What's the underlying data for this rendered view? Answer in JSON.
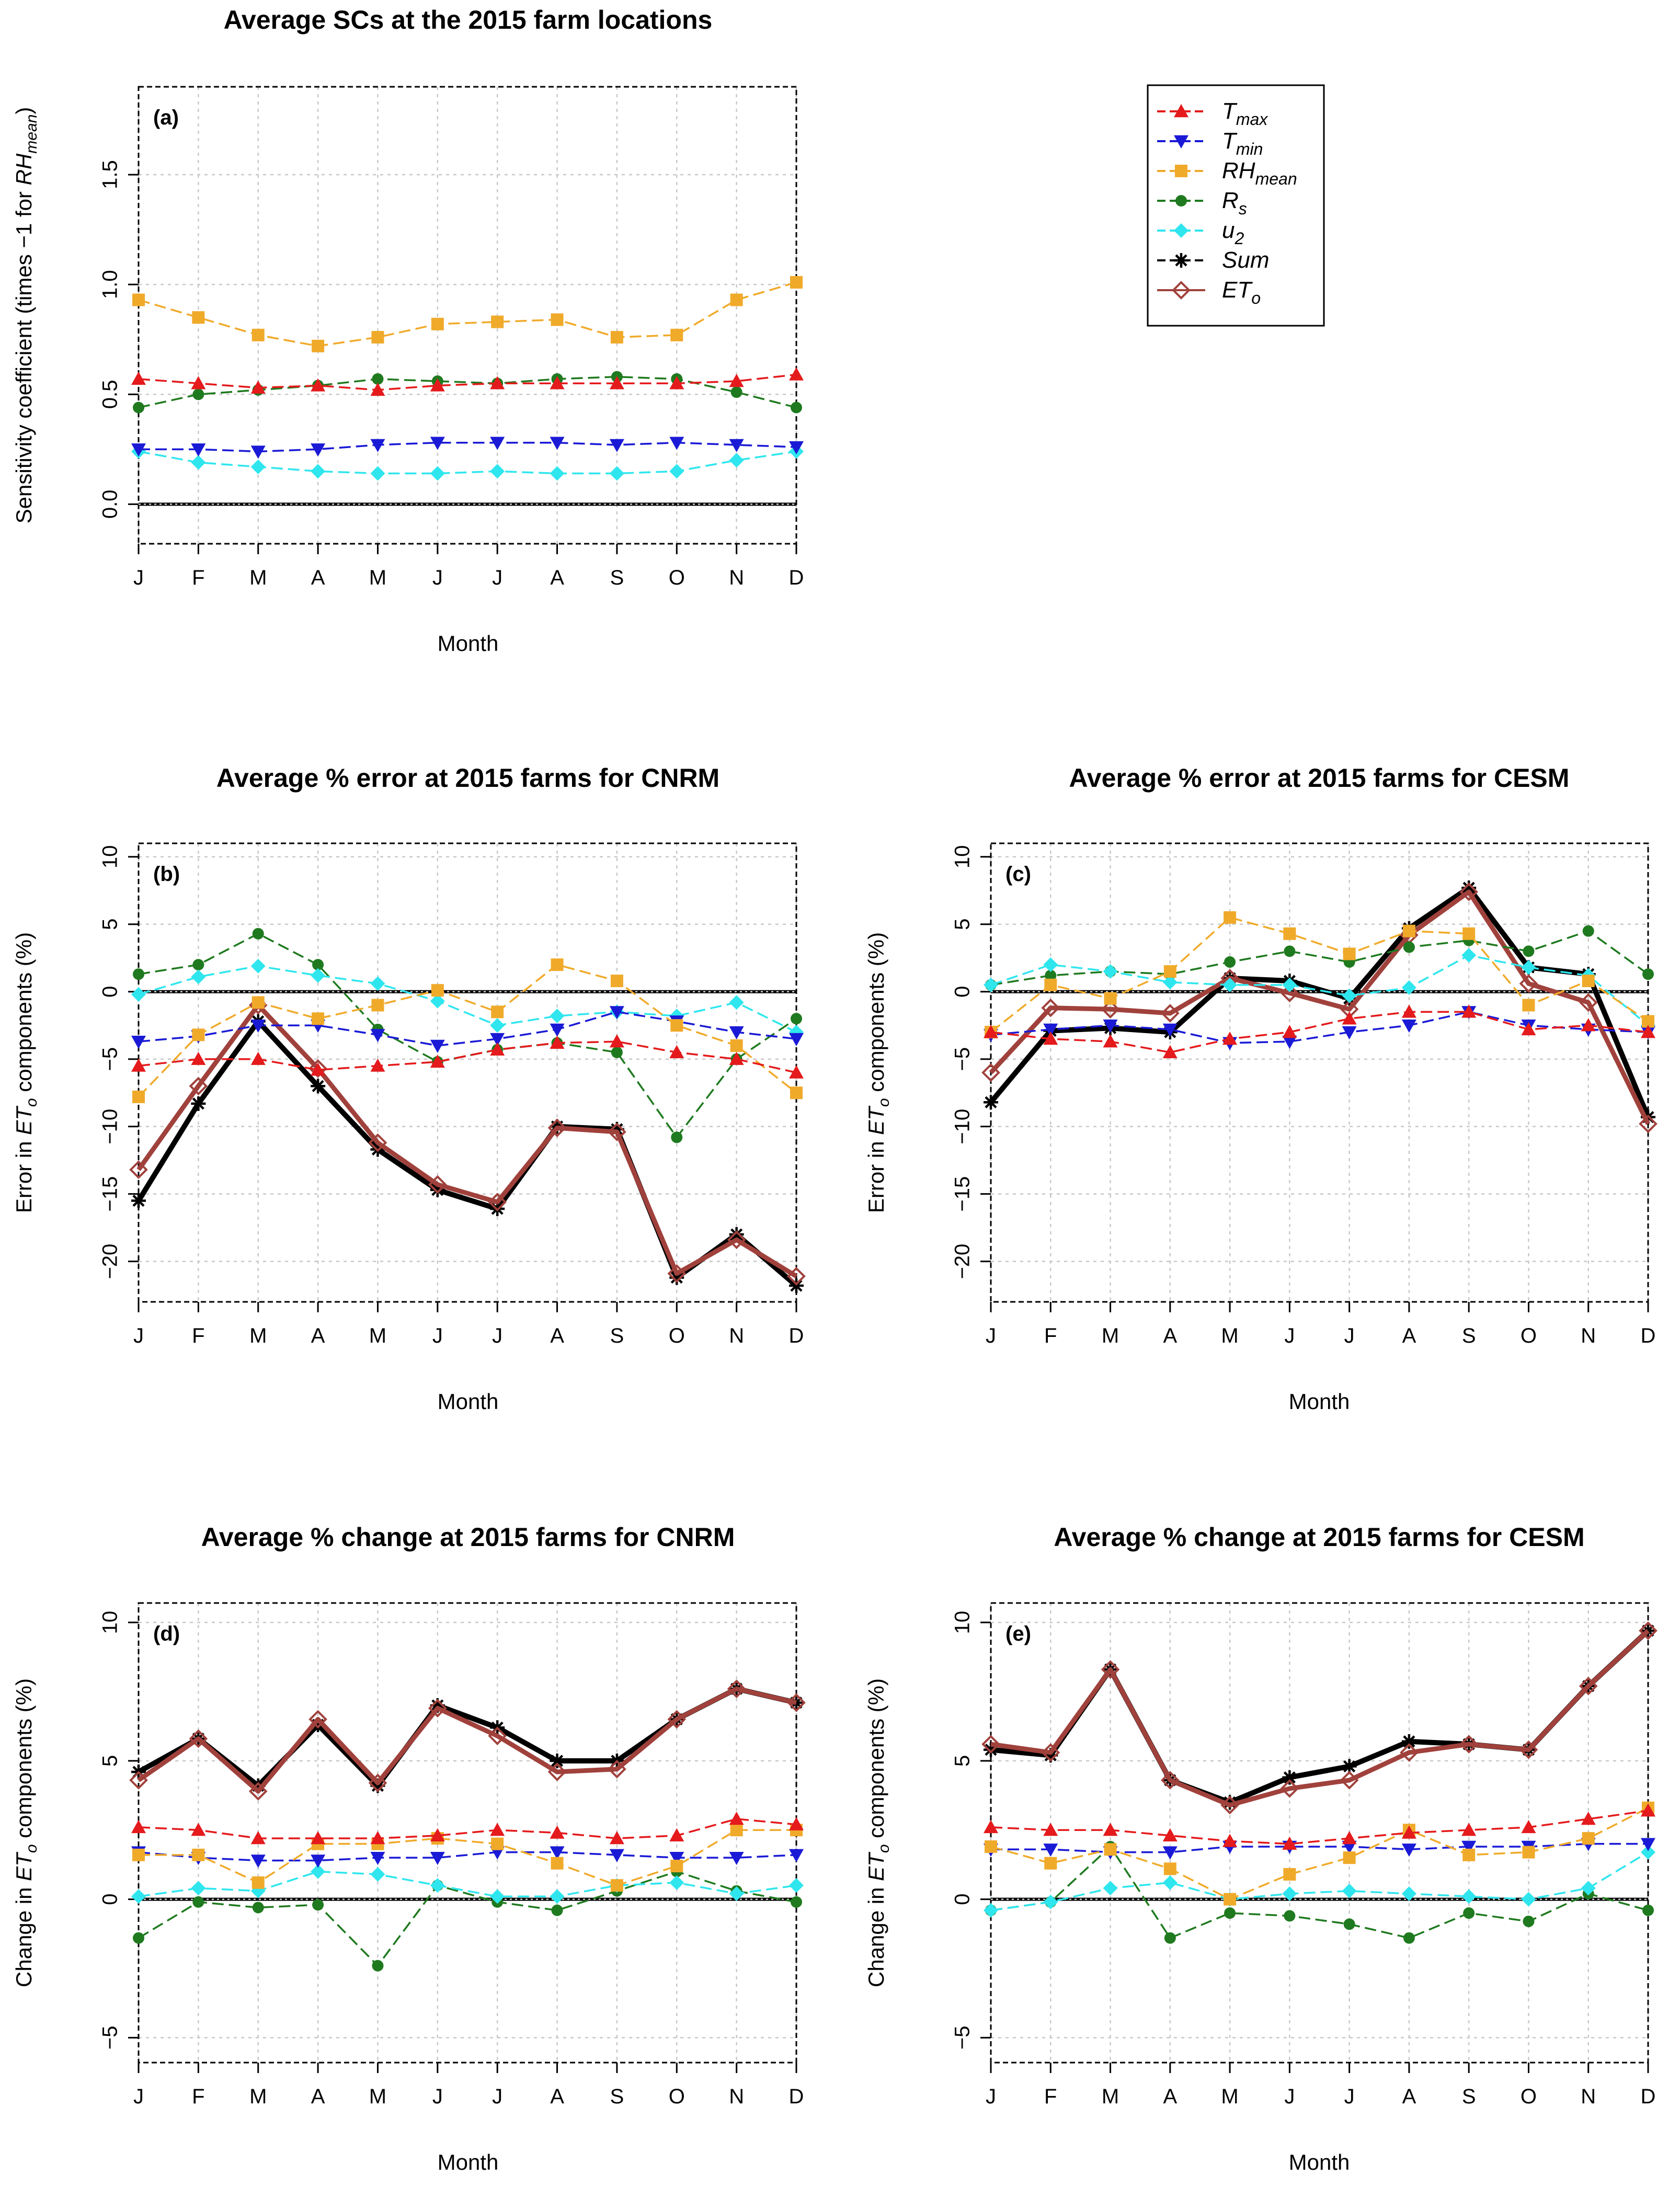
{
  "chart_data": [
    {
      "id": "a",
      "type": "line",
      "title": "Average SCs at the 2015 farm locations",
      "panel_label": "(a)",
      "xlabel": "Month",
      "ylabel_parts": [
        "Sensitivity coefficient (times −1 for ",
        "RH",
        "mean",
        ")"
      ],
      "categories": [
        "J",
        "F",
        "M",
        "A",
        "M",
        "J",
        "J",
        "A",
        "S",
        "O",
        "N",
        "D"
      ],
      "ylim": [
        -0.18,
        1.9
      ],
      "yticks": [
        0.0,
        0.5,
        1.0,
        1.5
      ],
      "ytick_labels": [
        "0.0",
        "0.5",
        "1.0",
        "1.5"
      ],
      "series": [
        {
          "key": "tmax",
          "values": [
            0.57,
            0.55,
            0.53,
            0.54,
            0.52,
            0.54,
            0.55,
            0.55,
            0.55,
            0.55,
            0.56,
            0.59
          ]
        },
        {
          "key": "tmin",
          "values": [
            0.25,
            0.25,
            0.24,
            0.25,
            0.27,
            0.28,
            0.28,
            0.28,
            0.27,
            0.28,
            0.27,
            0.26
          ]
        },
        {
          "key": "rh",
          "values": [
            0.93,
            0.85,
            0.77,
            0.72,
            0.76,
            0.82,
            0.83,
            0.84,
            0.76,
            0.77,
            0.93,
            1.01
          ]
        },
        {
          "key": "rs",
          "values": [
            0.44,
            0.5,
            0.52,
            0.54,
            0.57,
            0.56,
            0.55,
            0.57,
            0.58,
            0.57,
            0.51,
            0.44
          ]
        },
        {
          "key": "u2",
          "values": [
            0.24,
            0.19,
            0.17,
            0.15,
            0.14,
            0.14,
            0.15,
            0.14,
            0.14,
            0.15,
            0.2,
            0.24
          ]
        }
      ]
    },
    {
      "id": "b",
      "type": "line",
      "title": "Average % error at 2015 farms for CNRM",
      "panel_label": "(b)",
      "xlabel": "Month",
      "ylabel_parts": [
        "Error in ",
        "ET",
        "o",
        " components (%)"
      ],
      "categories": [
        "J",
        "F",
        "M",
        "A",
        "M",
        "J",
        "J",
        "A",
        "S",
        "O",
        "N",
        "D"
      ],
      "ylim": [
        -23,
        11
      ],
      "yticks": [
        -20,
        -15,
        -10,
        -5,
        0,
        5,
        10
      ],
      "ytick_labels": [
        "−20",
        "−15",
        "−10",
        "−5",
        "0",
        "5",
        "10"
      ],
      "series": [
        {
          "key": "tmax",
          "values": [
            -5.5,
            -5.0,
            -5.0,
            -5.8,
            -5.5,
            -5.2,
            -4.3,
            -3.8,
            -3.7,
            -4.5,
            -5.0,
            -6.0
          ]
        },
        {
          "key": "tmin",
          "values": [
            -3.7,
            -3.3,
            -2.5,
            -2.5,
            -3.2,
            -4.0,
            -3.5,
            -2.8,
            -1.5,
            -2.2,
            -3.0,
            -3.5
          ]
        },
        {
          "key": "rh",
          "values": [
            -7.8,
            -3.2,
            -0.8,
            -2.0,
            -1.0,
            0.1,
            -1.5,
            2.0,
            0.8,
            -2.5,
            -4.0,
            -7.5
          ]
        },
        {
          "key": "rs",
          "values": [
            1.3,
            2.0,
            4.3,
            2.0,
            -2.8,
            -5.2,
            -4.3,
            -3.8,
            -4.5,
            -10.8,
            -5.0,
            -2.0
          ]
        },
        {
          "key": "u2",
          "values": [
            -0.2,
            1.1,
            1.9,
            1.2,
            0.6,
            -0.7,
            -2.5,
            -1.8,
            -1.5,
            -1.8,
            -0.8,
            -3.0
          ]
        },
        {
          "key": "sum",
          "values": [
            -15.5,
            -8.3,
            -2.2,
            -7.0,
            -11.7,
            -14.7,
            -16.1,
            -10.0,
            -10.2,
            -21.2,
            -18.0,
            -21.8
          ]
        },
        {
          "key": "eto",
          "values": [
            -13.2,
            -7.0,
            -1.0,
            -5.7,
            -11.2,
            -14.3,
            -15.6,
            -10.1,
            -10.4,
            -20.9,
            -18.4,
            -21.1
          ]
        }
      ]
    },
    {
      "id": "c",
      "type": "line",
      "title": "Average % error at 2015 farms for CESM",
      "panel_label": "(c)",
      "xlabel": "Month",
      "ylabel_parts": [
        "Error in ",
        "ET",
        "o",
        " components (%)"
      ],
      "categories": [
        "J",
        "F",
        "M",
        "A",
        "M",
        "J",
        "J",
        "A",
        "S",
        "O",
        "N",
        "D"
      ],
      "ylim": [
        -23,
        11
      ],
      "yticks": [
        -20,
        -15,
        -10,
        -5,
        0,
        5,
        10
      ],
      "ytick_labels": [
        "−20",
        "−15",
        "−10",
        "−5",
        "0",
        "5",
        "10"
      ],
      "series": [
        {
          "key": "tmax",
          "values": [
            -3.0,
            -3.5,
            -3.7,
            -4.5,
            -3.5,
            -3.0,
            -2.0,
            -1.5,
            -1.5,
            -2.8,
            -2.5,
            -3.0
          ]
        },
        {
          "key": "tmin",
          "values": [
            -3.2,
            -2.8,
            -2.5,
            -2.8,
            -3.8,
            -3.7,
            -3.0,
            -2.5,
            -1.5,
            -2.5,
            -2.8,
            -3.0
          ]
        },
        {
          "key": "rh",
          "values": [
            -3.0,
            0.5,
            -0.5,
            1.5,
            5.5,
            4.3,
            2.8,
            4.5,
            4.3,
            -1.0,
            0.8,
            -2.2
          ]
        },
        {
          "key": "rs",
          "values": [
            0.5,
            1.2,
            1.5,
            1.3,
            2.2,
            3.0,
            2.2,
            3.3,
            3.8,
            3.0,
            4.5,
            1.3
          ]
        },
        {
          "key": "u2",
          "values": [
            0.5,
            2.0,
            1.5,
            0.7,
            0.5,
            0.5,
            -0.3,
            0.3,
            2.7,
            1.8,
            1.2,
            -2.5
          ]
        },
        {
          "key": "sum",
          "values": [
            -8.2,
            -2.9,
            -2.7,
            -3.0,
            1.0,
            0.8,
            -0.5,
            4.7,
            7.7,
            1.8,
            1.3,
            -9.3
          ]
        },
        {
          "key": "eto",
          "values": [
            -6.0,
            -1.2,
            -1.3,
            -1.6,
            1.0,
            -0.1,
            -1.3,
            4.2,
            7.4,
            0.6,
            -0.8,
            -9.8
          ]
        }
      ]
    },
    {
      "id": "d",
      "type": "line",
      "title": "Average % change at 2015 farms for CNRM",
      "panel_label": "(d)",
      "xlabel": "Month",
      "ylabel_parts": [
        "Change in ",
        "ET",
        "o",
        " components (%)"
      ],
      "categories": [
        "J",
        "F",
        "M",
        "A",
        "M",
        "J",
        "J",
        "A",
        "S",
        "O",
        "N",
        "D"
      ],
      "ylim": [
        -5.9,
        10.7
      ],
      "yticks": [
        -5,
        0,
        5,
        10
      ],
      "ytick_labels": [
        "−5",
        "0",
        "5",
        "10"
      ],
      "series": [
        {
          "key": "tmax",
          "values": [
            2.6,
            2.5,
            2.2,
            2.2,
            2.2,
            2.3,
            2.5,
            2.4,
            2.2,
            2.3,
            2.9,
            2.7
          ]
        },
        {
          "key": "tmin",
          "values": [
            1.7,
            1.5,
            1.4,
            1.4,
            1.5,
            1.5,
            1.7,
            1.7,
            1.6,
            1.5,
            1.5,
            1.6
          ]
        },
        {
          "key": "rh",
          "values": [
            1.6,
            1.6,
            0.6,
            2.0,
            2.0,
            2.2,
            2.0,
            1.3,
            0.5,
            1.2,
            2.5,
            2.5
          ]
        },
        {
          "key": "rs",
          "values": [
            -1.4,
            -0.1,
            -0.3,
            -0.2,
            -2.4,
            0.5,
            -0.1,
            -0.4,
            0.3,
            1.0,
            0.3,
            -0.1
          ]
        },
        {
          "key": "u2",
          "values": [
            0.1,
            0.4,
            0.3,
            1.0,
            0.9,
            0.5,
            0.1,
            0.1,
            0.5,
            0.6,
            0.2,
            0.5
          ]
        },
        {
          "key": "sum",
          "values": [
            4.6,
            5.8,
            4.1,
            6.3,
            4.1,
            7.0,
            6.2,
            5.0,
            5.0,
            6.5,
            7.6,
            7.1
          ]
        },
        {
          "key": "eto",
          "values": [
            4.3,
            5.8,
            3.9,
            6.5,
            4.2,
            6.9,
            5.9,
            4.6,
            4.7,
            6.5,
            7.6,
            7.1
          ]
        }
      ]
    },
    {
      "id": "e",
      "type": "line",
      "title": "Average % change at 2015 farms for CESM",
      "panel_label": "(e)",
      "xlabel": "Month",
      "ylabel_parts": [
        "Change in ",
        "ET",
        "o",
        " components (%)"
      ],
      "categories": [
        "J",
        "F",
        "M",
        "A",
        "M",
        "J",
        "J",
        "A",
        "S",
        "O",
        "N",
        "D"
      ],
      "ylim": [
        -5.9,
        10.7
      ],
      "yticks": [
        -5,
        0,
        5,
        10
      ],
      "ytick_labels": [
        "−5",
        "0",
        "5",
        "10"
      ],
      "series": [
        {
          "key": "tmax",
          "values": [
            2.6,
            2.5,
            2.5,
            2.3,
            2.1,
            2.0,
            2.2,
            2.4,
            2.5,
            2.6,
            2.9,
            3.2
          ]
        },
        {
          "key": "tmin",
          "values": [
            1.8,
            1.8,
            1.7,
            1.7,
            1.9,
            1.9,
            1.9,
            1.8,
            1.9,
            1.9,
            2.0,
            2.0
          ]
        },
        {
          "key": "rh",
          "values": [
            1.9,
            1.3,
            1.8,
            1.1,
            0.0,
            0.9,
            1.5,
            2.5,
            1.6,
            1.7,
            2.2,
            3.3
          ]
        },
        {
          "key": "rs",
          "values": [
            -0.4,
            -0.1,
            1.9,
            -1.4,
            -0.5,
            -0.6,
            -0.9,
            -1.4,
            -0.5,
            -0.8,
            0.2,
            -0.4
          ]
        },
        {
          "key": "u2",
          "values": [
            -0.4,
            -0.1,
            0.4,
            0.6,
            0.0,
            0.2,
            0.3,
            0.2,
            0.1,
            0.0,
            0.4,
            1.7
          ]
        },
        {
          "key": "sum",
          "values": [
            5.4,
            5.2,
            8.3,
            4.3,
            3.5,
            4.4,
            4.8,
            5.7,
            5.6,
            5.4,
            7.7,
            9.7
          ]
        },
        {
          "key": "eto",
          "values": [
            5.6,
            5.3,
            8.3,
            4.3,
            3.4,
            4.0,
            4.3,
            5.3,
            5.6,
            5.4,
            7.7,
            9.7
          ]
        }
      ]
    }
  ],
  "legend": {
    "position": "top-right",
    "entries": [
      {
        "key": "tmax",
        "base": "T",
        "sub": "max",
        "color": "#e41a1c",
        "marker": "triangle-up",
        "dashed": true
      },
      {
        "key": "tmin",
        "base": "T",
        "sub": "min",
        "color": "#1a1ad6",
        "marker": "triangle-down",
        "dashed": true
      },
      {
        "key": "rh",
        "base": "RH",
        "sub": "mean",
        "color": "#f0aa2a",
        "marker": "square",
        "dashed": true
      },
      {
        "key": "rs",
        "base": "R",
        "sub": "s",
        "color": "#1f7a1f",
        "marker": "circle",
        "dashed": true
      },
      {
        "key": "u2",
        "base": "u",
        "sub": "2",
        "color": "#2fe6ee",
        "marker": "diamond",
        "dashed": true
      },
      {
        "key": "sum",
        "base": "Sum",
        "sub": "",
        "color": "#000000",
        "marker": "asterisk",
        "dashed": true
      },
      {
        "key": "eto",
        "base": "ET",
        "sub": "o",
        "color": "#a0413c",
        "marker": "diamond-open",
        "dashed": false
      }
    ]
  }
}
